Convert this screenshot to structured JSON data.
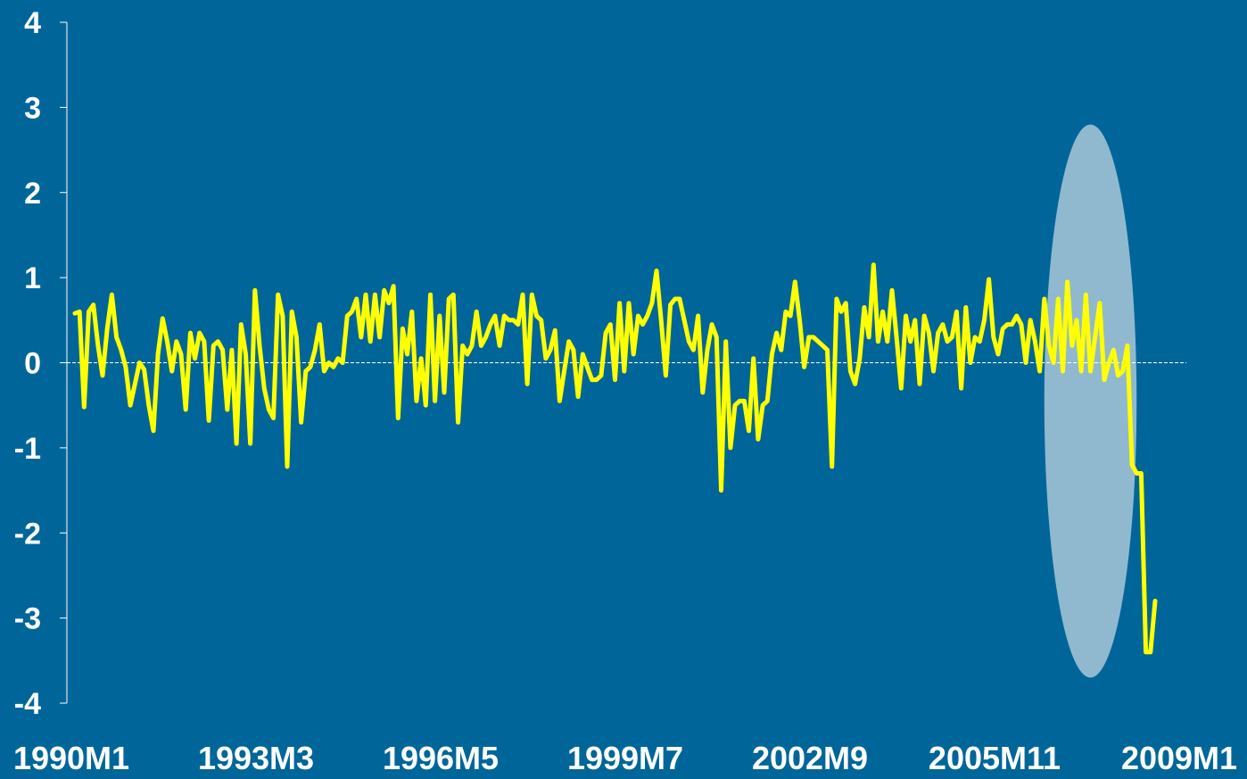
{
  "colors": {
    "background": "#006699",
    "series_line": "#ffff00",
    "axis": "#ffffff",
    "highlight": "#a9c8d8"
  },
  "chart_data": {
    "type": "line",
    "title": "",
    "xlabel": "",
    "ylabel": "",
    "x_start": "1990M1",
    "frequency": "monthly",
    "x_tick_labels": [
      "1990M1",
      "1993M3",
      "1996M5",
      "1999M7",
      "2002M9",
      "2005M11",
      "2009M1"
    ],
    "y_tick_labels": [
      "4",
      "3",
      "2",
      "1",
      "0",
      "-1",
      "-2",
      "-3",
      "-4"
    ],
    "ylim": [
      -4,
      4
    ],
    "y_ticks": [
      4,
      3,
      2,
      1,
      0,
      -1,
      -2,
      -3,
      -4
    ],
    "zero_line": true,
    "grid": false,
    "legend": "none",
    "highlight": {
      "shape": "ellipse",
      "x_range": [
        "2007M7",
        "2009M3"
      ],
      "y_range": [
        -3.7,
        2.8
      ]
    },
    "series": [
      {
        "values": [
          0.58,
          0.6,
          -0.52,
          0.6,
          0.68,
          0.2,
          -0.15,
          0.4,
          0.8,
          0.3,
          0.15,
          -0.05,
          -0.5,
          -0.25,
          0.0,
          -0.08,
          -0.5,
          -0.8,
          0.1,
          0.52,
          0.25,
          -0.1,
          0.25,
          0.1,
          -0.55,
          0.35,
          0.05,
          0.35,
          0.25,
          -0.68,
          0.2,
          0.25,
          0.15,
          -0.55,
          0.15,
          -0.95,
          0.45,
          0.1,
          -0.95,
          0.85,
          0.2,
          -0.3,
          -0.55,
          -0.65,
          0.8,
          0.55,
          -1.22,
          0.6,
          0.3,
          -0.7,
          -0.1,
          -0.05,
          0.15,
          0.45,
          -0.1,
          0.0,
          -0.05,
          0.05,
          0.0,
          0.55,
          0.6,
          0.75,
          0.3,
          0.8,
          0.25,
          0.8,
          0.3,
          0.85,
          0.7,
          0.9,
          -0.65,
          0.4,
          0.1,
          0.6,
          -0.45,
          0.05,
          -0.5,
          0.8,
          -0.45,
          0.55,
          -0.35,
          0.75,
          0.8,
          -0.7,
          0.2,
          0.1,
          0.2,
          0.6,
          0.2,
          0.3,
          0.45,
          0.55,
          0.2,
          0.55,
          0.5,
          0.5,
          0.45,
          0.8,
          -0.25,
          0.8,
          0.55,
          0.5,
          0.05,
          0.15,
          0.38,
          -0.45,
          -0.1,
          0.25,
          0.15,
          -0.4,
          0.1,
          -0.05,
          -0.2,
          -0.2,
          -0.15,
          0.35,
          0.45,
          -0.2,
          0.7,
          -0.1,
          0.7,
          0.1,
          0.55,
          0.45,
          0.55,
          0.7,
          1.08,
          0.5,
          -0.15,
          0.68,
          0.75,
          0.75,
          0.5,
          0.25,
          0.15,
          0.55,
          -0.35,
          0.15,
          0.45,
          0.3,
          -1.5,
          0.25,
          -1.0,
          -0.5,
          -0.45,
          -0.45,
          -0.8,
          0.05,
          -0.9,
          -0.5,
          -0.45,
          0.1,
          0.35,
          0.15,
          0.6,
          0.55,
          0.95,
          0.5,
          -0.05,
          0.3,
          0.3,
          0.25,
          0.2,
          0.15,
          -1.22,
          0.75,
          0.6,
          0.7,
          -0.1,
          -0.25,
          0.05,
          0.65,
          0.3,
          1.15,
          0.25,
          0.6,
          0.25,
          0.85,
          0.3,
          -0.3,
          0.55,
          0.25,
          0.5,
          -0.25,
          0.55,
          0.35,
          -0.1,
          0.35,
          0.45,
          0.25,
          0.3,
          0.6,
          -0.3,
          0.65,
          0.0,
          0.3,
          0.25,
          0.5,
          0.98,
          0.3,
          0.1,
          0.4,
          0.45,
          0.45,
          0.55,
          0.45,
          0.0,
          0.5,
          0.25,
          -0.1,
          0.75,
          0.2,
          0.0,
          0.75,
          -0.1,
          0.95,
          0.2,
          0.5,
          -0.1,
          0.8,
          -0.1,
          0.3,
          0.7,
          -0.2,
          0.0,
          0.15,
          -0.15,
          -0.1,
          0.2,
          -1.2,
          -1.3,
          -1.3,
          -3.4,
          -3.4,
          -2.8
        ]
      }
    ]
  }
}
